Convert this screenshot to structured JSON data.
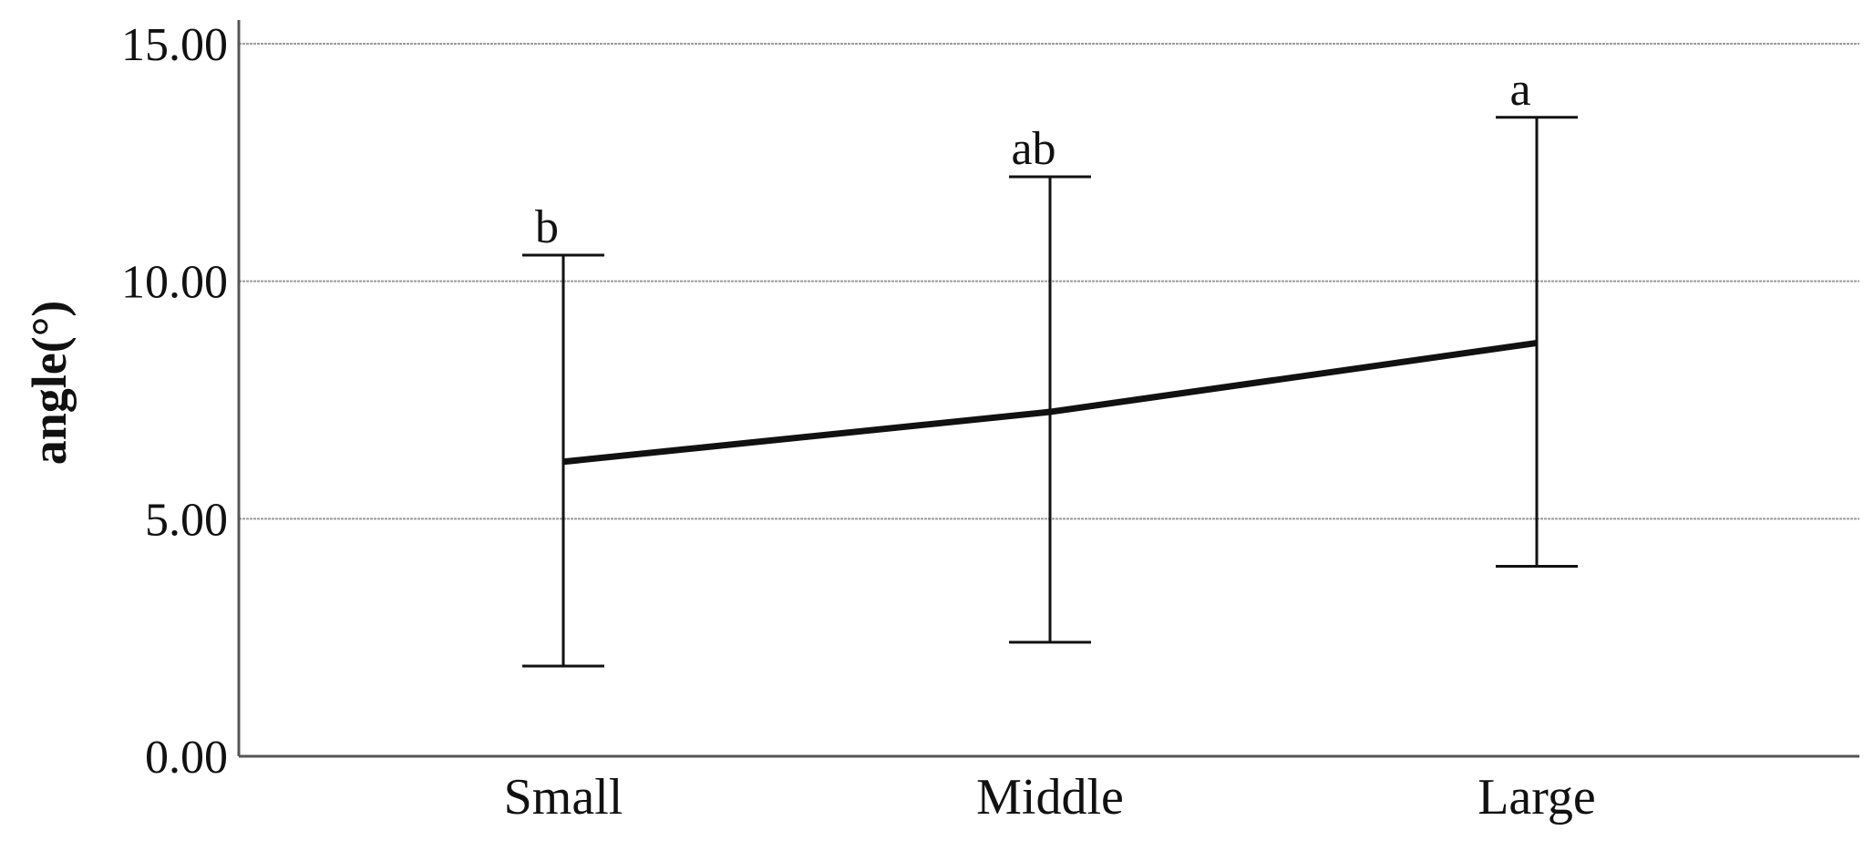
{
  "chart_data": {
    "type": "line",
    "title": "",
    "xlabel": "",
    "ylabel": "angle(°)",
    "ylim": [
      0,
      15
    ],
    "yticks": [
      {
        "value": 0,
        "label": "0.00"
      },
      {
        "value": 5,
        "label": "5.00"
      },
      {
        "value": 10,
        "label": "10.00"
      },
      {
        "value": 15,
        "label": "15.00"
      }
    ],
    "grid": true,
    "categories": [
      "Small",
      "Middle",
      "Large"
    ],
    "series": [
      {
        "values": [
          6.2,
          7.25,
          8.7
        ],
        "error_lower": [
          1.9,
          2.4,
          4.0
        ],
        "error_upper": [
          10.55,
          12.2,
          13.45
        ],
        "significance_labels": [
          "b",
          "ab",
          "a"
        ]
      }
    ],
    "colors": {
      "line": "#111111",
      "grid": "#9a9a9a",
      "axis": "#555555"
    }
  }
}
